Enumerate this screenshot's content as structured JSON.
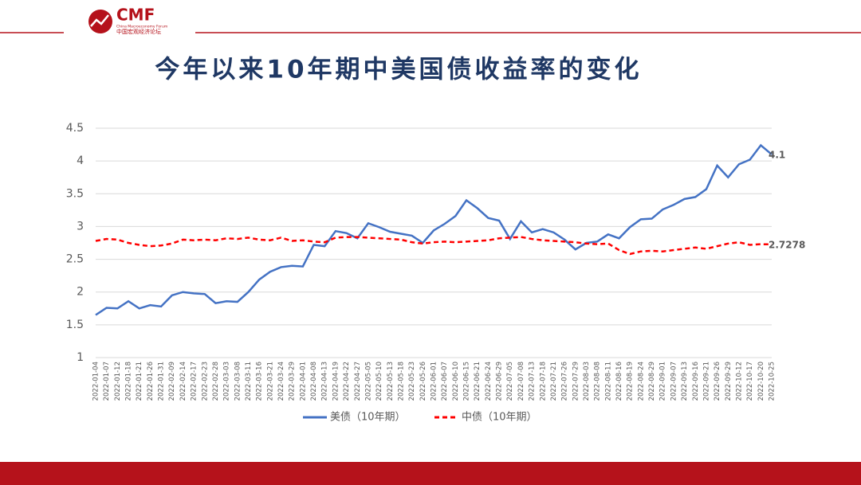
{
  "header": {
    "logo": "CMF",
    "logo_subtitle": "China Macroeconomy Forum",
    "logo_cn": "中国宏观经济论坛"
  },
  "chart_data": {
    "type": "line",
    "title": "今年以来10年期中美国债收益率的变化",
    "categories": [
      "2022-01-04",
      "2022-01-07",
      "2022-01-12",
      "2022-01-18",
      "2022-01-21",
      "2022-01-26",
      "2022-01-31",
      "2022-02-09",
      "2022-02-14",
      "2022-02-17",
      "2022-02-23",
      "2022-02-28",
      "2022-03-03",
      "2022-03-08",
      "2022-03-11",
      "2022-03-16",
      "2022-03-21",
      "2022-03-24",
      "2022-03-29",
      "2022-04-01",
      "2022-04-08",
      "2022-04-13",
      "2022-04-19",
      "2022-04-22",
      "2022-04-27",
      "2022-05-05",
      "2022-05-10",
      "2022-05-13",
      "2022-05-18",
      "2022-05-23",
      "2022-05-26",
      "2022-06-01",
      "2022-06-07",
      "2022-06-10",
      "2022-06-15",
      "2022-06-21",
      "2022-06-24",
      "2022-06-29",
      "2022-07-05",
      "2022-07-08",
      "2022-07-13",
      "2022-07-18",
      "2022-07-21",
      "2022-07-26",
      "2022-07-29",
      "2022-08-03",
      "2022-08-08",
      "2022-08-11",
      "2022-08-16",
      "2022-08-19",
      "2022-08-24",
      "2022-08-29",
      "2022-09-01",
      "2022-09-07",
      "2022-09-13",
      "2022-09-16",
      "2022-09-21",
      "2022-09-26",
      "2022-09-29",
      "2022-10-12",
      "2022-10-17",
      "2022-10-20",
      "2022-10-25"
    ],
    "series": [
      {
        "name": "美债（10年期）",
        "color": "#4472c4",
        "dashed": false,
        "values": [
          1.65,
          1.76,
          1.75,
          1.86,
          1.75,
          1.8,
          1.78,
          1.95,
          2.0,
          1.98,
          1.97,
          1.83,
          1.86,
          1.85,
          2.0,
          2.19,
          2.31,
          2.38,
          2.4,
          2.39,
          2.72,
          2.7,
          2.93,
          2.9,
          2.82,
          3.05,
          2.99,
          2.92,
          2.89,
          2.86,
          2.75,
          2.94,
          3.04,
          3.16,
          3.4,
          3.28,
          3.13,
          3.09,
          2.81,
          3.08,
          2.91,
          2.96,
          2.91,
          2.8,
          2.65,
          2.75,
          2.77,
          2.88,
          2.82,
          2.99,
          3.11,
          3.12,
          3.26,
          3.33,
          3.42,
          3.45,
          3.57,
          3.93,
          3.75,
          3.95,
          4.02,
          4.24,
          4.1
        ]
      },
      {
        "name": "中债（10年期）",
        "color": "#ff0000",
        "dashed": true,
        "values": [
          2.78,
          2.81,
          2.8,
          2.75,
          2.72,
          2.7,
          2.71,
          2.74,
          2.8,
          2.79,
          2.8,
          2.79,
          2.82,
          2.81,
          2.83,
          2.8,
          2.79,
          2.83,
          2.78,
          2.79,
          2.77,
          2.76,
          2.83,
          2.84,
          2.84,
          2.83,
          2.82,
          2.81,
          2.8,
          2.76,
          2.74,
          2.76,
          2.77,
          2.76,
          2.77,
          2.78,
          2.79,
          2.82,
          2.83,
          2.84,
          2.81,
          2.79,
          2.78,
          2.77,
          2.76,
          2.74,
          2.73,
          2.74,
          2.64,
          2.58,
          2.62,
          2.63,
          2.62,
          2.64,
          2.66,
          2.68,
          2.66,
          2.7,
          2.74,
          2.76,
          2.72,
          2.73,
          2.7278
        ]
      }
    ],
    "ylim": [
      1,
      4.5
    ],
    "yticks": [
      1,
      1.5,
      2,
      2.5,
      3,
      3.5,
      4,
      4.5
    ],
    "grid": true,
    "legend": "bottom"
  }
}
